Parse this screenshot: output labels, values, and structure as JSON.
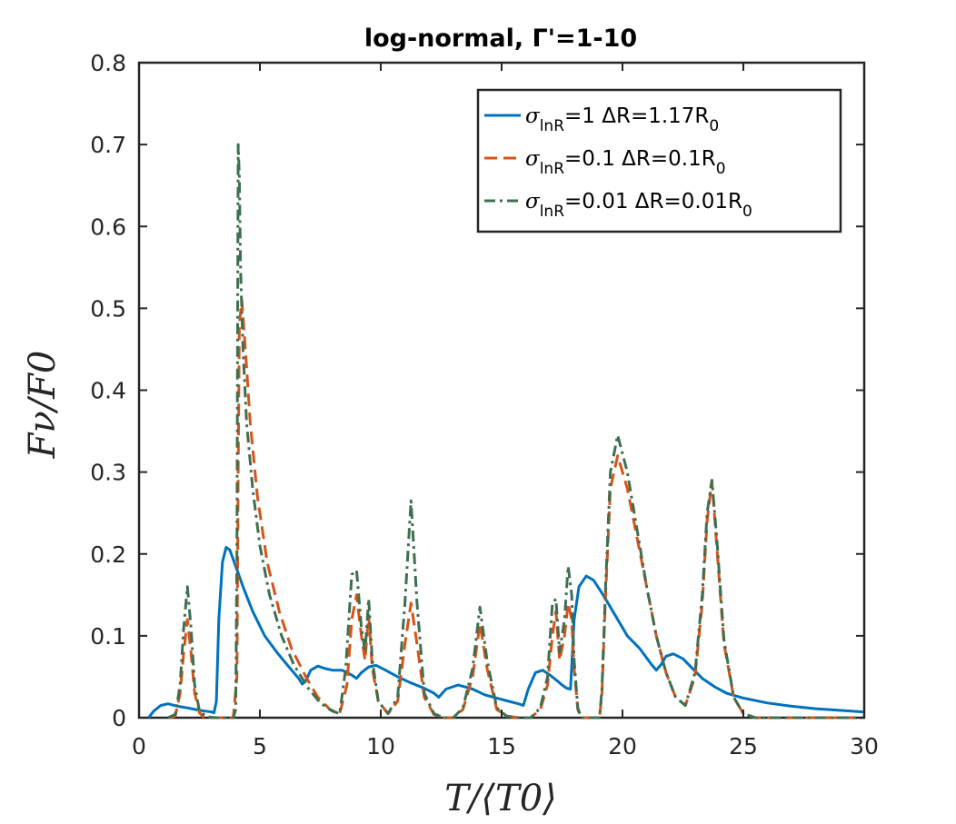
{
  "chart_data": {
    "type": "line",
    "title": "log-normal, Γ'=1-10",
    "xlabel": "T/⟨T0⟩",
    "ylabel": "Fν/F0",
    "xlim": [
      0,
      30
    ],
    "ylim": [
      0,
      0.8
    ],
    "xticks": [
      0,
      5,
      10,
      15,
      20,
      25,
      30
    ],
    "yticks": [
      0,
      0.1,
      0.2,
      0.3,
      0.4,
      0.5,
      0.6,
      0.7,
      0.8
    ],
    "xtick_labels": [
      "0",
      "5",
      "10",
      "15",
      "20",
      "25",
      "30"
    ],
    "ytick_labels": [
      "0",
      "0.1",
      "0.2",
      "0.3",
      "0.4",
      "0.5",
      "0.6",
      "0.7",
      "0.8"
    ],
    "legend_position": "top-right",
    "series": [
      {
        "name": "σlnR=1 ΔR=1.17R0",
        "legend_sigma": "1",
        "legend_dr": "1.17",
        "color": "#0072BD",
        "dash": "solid",
        "x": [
          0.4,
          0.6,
          0.9,
          1.2,
          1.6,
          2.0,
          2.5,
          3.0,
          3.1,
          3.2,
          3.3,
          3.45,
          3.6,
          3.75,
          4.0,
          4.3,
          4.7,
          5.2,
          5.7,
          6.2,
          6.6,
          6.75,
          6.9,
          7.1,
          7.4,
          7.7,
          8.0,
          8.4,
          8.8,
          9.0,
          9.2,
          9.5,
          9.8,
          10.2,
          10.7,
          11.2,
          11.8,
          12.2,
          12.4,
          12.7,
          13.2,
          13.8,
          14.3,
          14.8,
          15.3,
          15.7,
          15.9,
          16.1,
          16.4,
          16.7,
          17.0,
          17.3,
          17.5,
          17.7,
          17.85,
          18.0,
          18.2,
          18.5,
          18.8,
          19.2,
          19.7,
          20.2,
          20.7,
          21.2,
          21.4,
          21.6,
          21.8,
          22.1,
          22.5,
          22.9,
          23.3,
          23.8,
          24.3,
          25.0,
          26.0,
          27.0,
          28.0,
          29.0,
          30.0
        ],
        "y": [
          0.0,
          0.008,
          0.015,
          0.017,
          0.014,
          0.012,
          0.009,
          0.007,
          0.006,
          0.02,
          0.12,
          0.19,
          0.208,
          0.205,
          0.185,
          0.16,
          0.13,
          0.1,
          0.08,
          0.062,
          0.048,
          0.041,
          0.045,
          0.058,
          0.063,
          0.06,
          0.058,
          0.058,
          0.052,
          0.048,
          0.055,
          0.062,
          0.064,
          0.058,
          0.05,
          0.043,
          0.036,
          0.03,
          0.025,
          0.035,
          0.04,
          0.035,
          0.028,
          0.024,
          0.02,
          0.017,
          0.015,
          0.035,
          0.055,
          0.058,
          0.052,
          0.045,
          0.04,
          0.036,
          0.035,
          0.12,
          0.16,
          0.173,
          0.168,
          0.15,
          0.125,
          0.1,
          0.085,
          0.065,
          0.058,
          0.065,
          0.075,
          0.078,
          0.072,
          0.06,
          0.048,
          0.038,
          0.03,
          0.024,
          0.018,
          0.014,
          0.011,
          0.009,
          0.007
        ]
      },
      {
        "name": "σlnR=0.1 ΔR=0.1R0",
        "legend_sigma": "0.1",
        "legend_dr": "0.1",
        "color": "#D95319",
        "dash": "dashed",
        "x": [
          1.3,
          1.5,
          1.7,
          1.85,
          2.0,
          2.15,
          2.3,
          2.5,
          2.7,
          3.9,
          4.05,
          4.1,
          4.15,
          4.25,
          4.4,
          4.6,
          4.9,
          5.3,
          5.8,
          6.3,
          6.9,
          7.4,
          7.9,
          8.3,
          8.6,
          8.8,
          9.0,
          9.2,
          9.35,
          9.5,
          9.65,
          9.9,
          10.3,
          10.7,
          11.0,
          11.25,
          11.5,
          11.8,
          12.2,
          12.6,
          13.0,
          13.4,
          13.8,
          14.1,
          14.4,
          14.8,
          15.2,
          15.7,
          16.2,
          16.6,
          16.9,
          17.1,
          17.25,
          17.4,
          17.6,
          17.75,
          17.9,
          18.0,
          18.15,
          18.3,
          18.6,
          18.9,
          19.05,
          19.15,
          19.3,
          19.5,
          19.8,
          20.2,
          20.6,
          21.0,
          21.4,
          21.8,
          22.2,
          22.6,
          23.0,
          23.3,
          23.5,
          23.7,
          23.9,
          24.2,
          24.6,
          25.0,
          25.5,
          26.0,
          27.0,
          28.0,
          29.0,
          30.0
        ],
        "y": [
          0.0,
          0.002,
          0.03,
          0.08,
          0.12,
          0.08,
          0.03,
          0.006,
          0.0,
          0.0,
          0.05,
          0.3,
          0.48,
          0.51,
          0.45,
          0.36,
          0.27,
          0.19,
          0.13,
          0.085,
          0.05,
          0.025,
          0.01,
          0.005,
          0.04,
          0.12,
          0.15,
          0.1,
          0.07,
          0.125,
          0.06,
          0.02,
          0.005,
          0.02,
          0.09,
          0.14,
          0.09,
          0.025,
          0.004,
          0.0,
          0.0,
          0.01,
          0.05,
          0.115,
          0.06,
          0.01,
          0.002,
          0.0,
          0.0,
          0.01,
          0.04,
          0.1,
          0.13,
          0.07,
          0.1,
          0.14,
          0.12,
          0.06,
          0.01,
          0.0,
          0.0,
          0.0,
          0.0,
          0.03,
          0.15,
          0.28,
          0.32,
          0.28,
          0.22,
          0.16,
          0.1,
          0.055,
          0.025,
          0.015,
          0.05,
          0.14,
          0.24,
          0.29,
          0.21,
          0.09,
          0.025,
          0.005,
          0.0,
          0.0,
          0.0,
          0.0,
          0.0,
          0.0
        ]
      },
      {
        "name": "σlnR=0.01 ΔR=0.01R0",
        "legend_sigma": "0.01",
        "legend_dr": "0.01",
        "color": "#3E6F50",
        "dash": "dashdot",
        "x": [
          1.2,
          1.5,
          1.7,
          1.85,
          2.0,
          2.15,
          2.3,
          2.5,
          2.8,
          3.2,
          3.6,
          3.9,
          4.0,
          4.05,
          4.1,
          4.15,
          4.2,
          4.3,
          4.45,
          4.7,
          5.0,
          5.4,
          5.9,
          6.4,
          7.0,
          7.5,
          8.0,
          8.3,
          8.55,
          8.8,
          9.0,
          9.2,
          9.35,
          9.5,
          9.65,
          9.9,
          10.3,
          10.7,
          11.0,
          11.25,
          11.5,
          11.8,
          12.2,
          12.6,
          13.0,
          13.4,
          13.8,
          14.1,
          14.4,
          14.8,
          15.2,
          15.7,
          16.2,
          16.6,
          16.9,
          17.1,
          17.25,
          17.4,
          17.6,
          17.75,
          17.9,
          18.0,
          18.15,
          18.3,
          18.6,
          18.9,
          19.05,
          19.15,
          19.3,
          19.5,
          19.8,
          20.2,
          20.6,
          21.0,
          21.4,
          21.8,
          22.2,
          22.6,
          23.0,
          23.3,
          23.5,
          23.7,
          23.9,
          24.2,
          24.6,
          25.0,
          25.5,
          26.0,
          27.0,
          28.0,
          29.0,
          30.0
        ],
        "y": [
          0.0,
          0.004,
          0.04,
          0.11,
          0.16,
          0.11,
          0.04,
          0.008,
          0.001,
          0.0,
          0.0,
          0.0,
          0.01,
          0.2,
          0.7,
          0.66,
          0.55,
          0.45,
          0.36,
          0.28,
          0.21,
          0.15,
          0.1,
          0.065,
          0.036,
          0.018,
          0.008,
          0.005,
          0.06,
          0.175,
          0.18,
          0.11,
          0.08,
          0.145,
          0.07,
          0.02,
          0.005,
          0.025,
          0.14,
          0.265,
          0.14,
          0.03,
          0.005,
          0.0,
          0.0,
          0.012,
          0.06,
          0.135,
          0.07,
          0.012,
          0.002,
          0.0,
          0.0,
          0.012,
          0.05,
          0.14,
          0.145,
          0.08,
          0.12,
          0.185,
          0.15,
          0.07,
          0.012,
          0.0,
          0.0,
          0.0,
          0.0,
          0.035,
          0.16,
          0.3,
          0.345,
          0.3,
          0.23,
          0.16,
          0.1,
          0.055,
          0.025,
          0.015,
          0.055,
          0.15,
          0.25,
          0.29,
          0.22,
          0.095,
          0.025,
          0.005,
          0.0,
          0.0,
          0.0,
          0.0,
          0.0,
          0.0
        ]
      }
    ]
  }
}
